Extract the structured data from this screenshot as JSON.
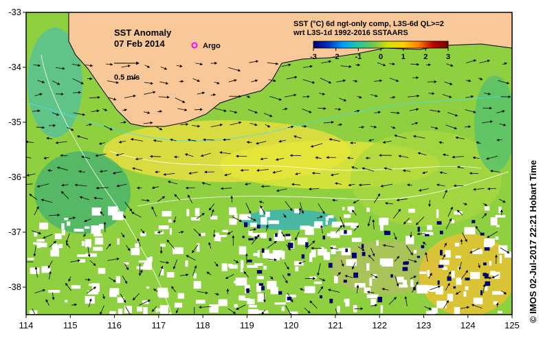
{
  "map": {
    "title": "SST Anomaly",
    "date": "07 Feb 2014",
    "argo_label": "Argo",
    "scale_label": "0.5 m/s",
    "product_line1": "SST (°C) 6d ngt-only comp, L3S-6d QL>=2",
    "product_line2": "wrt L3S-1d 1992-2016 SSTAARS",
    "credit": "© IMOS 02-Jul-2017 22:21 Hobart Time",
    "colorbar": {
      "ticks": [
        "-3",
        "-2",
        "-1",
        "0",
        "1",
        "2",
        "3"
      ],
      "range": [
        -3,
        3
      ],
      "stops": [
        "#000070",
        "#0030c0",
        "#00a0ff",
        "#20c8a0",
        "#70c850",
        "#d8e000",
        "#ffd000",
        "#ff8000",
        "#c00000",
        "#700000"
      ]
    },
    "x_ticks": [
      "114",
      "115",
      "116",
      "117",
      "118",
      "119",
      "120",
      "121",
      "122",
      "123",
      "124",
      "125"
    ],
    "y_ticks": [
      "-33",
      "-34",
      "-35",
      "-36",
      "-37",
      "-38"
    ],
    "lon_range": [
      114,
      125
    ],
    "lat_range": [
      -38.5,
      -33
    ],
    "colors": {
      "land": "#f8c898",
      "no_data": "#ffffff",
      "argo": "#ff00ff",
      "frame": "#000000"
    }
  }
}
